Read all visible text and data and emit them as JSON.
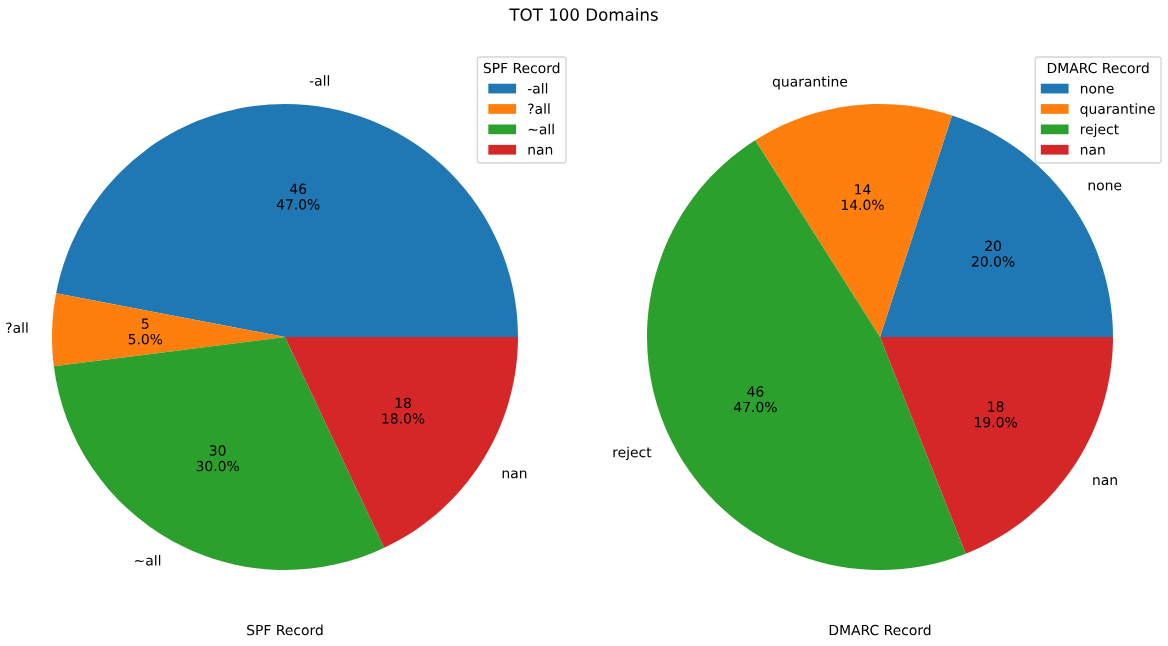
{
  "chart_data": [
    {
      "type": "pie",
      "title": "TOT 100 Domains",
      "xlabel": "SPF Record",
      "legend_title": "SPF Record",
      "legend": "top right",
      "categories": [
        "-all",
        "?all",
        "~all",
        "nan"
      ],
      "values": [
        47.0,
        5.0,
        30.0,
        18.0
      ],
      "value_labels": [
        "46\n47.0%",
        "5\n5.0%",
        "30\n30.0%",
        "18\n18.0%"
      ],
      "colors": [
        "#1f77b4",
        "#ff7f0e",
        "#2ca02c",
        "#d62728"
      ]
    },
    {
      "type": "pie",
      "xlabel": "DMARC Record",
      "legend_title": "DMARC Record",
      "legend": "top right",
      "categories": [
        "none",
        "quarantine",
        "reject",
        "nan"
      ],
      "values": [
        20.0,
        14.0,
        47.0,
        19.0
      ],
      "value_labels": [
        "20\n20.0%",
        "14\n14.0%",
        "46\n47.0%",
        "18\n19.0%"
      ],
      "colors": [
        "#1f77b4",
        "#ff7f0e",
        "#2ca02c",
        "#d62728"
      ]
    }
  ]
}
